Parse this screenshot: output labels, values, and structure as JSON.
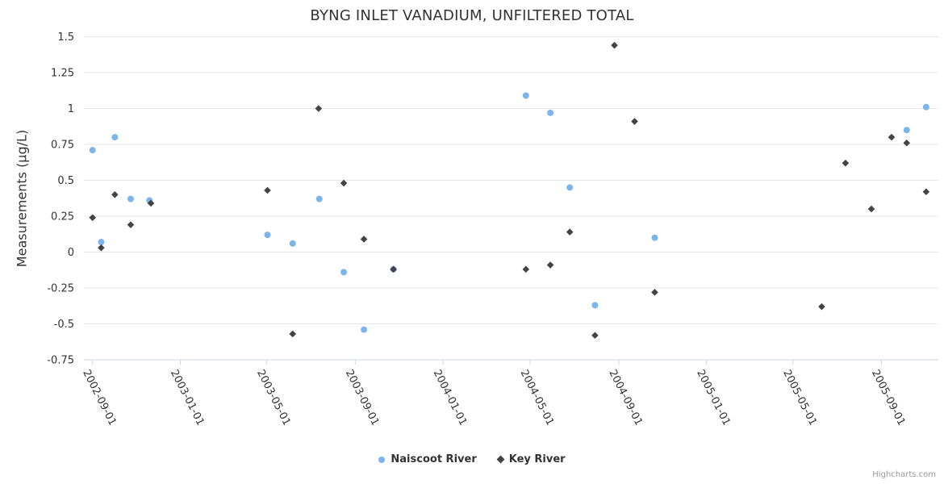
{
  "page": {
    "credits": "Highcharts.com"
  },
  "chart_data": {
    "type": "scatter",
    "title": "BYNG INLET VANADIUM, UNFILTERED TOTAL",
    "xlabel": "",
    "ylabel": "Measurements (µg/L)",
    "ylim": [
      -0.75,
      1.5
    ],
    "y_ticks": [
      -0.75,
      -0.5,
      -0.25,
      0,
      0.25,
      0.5,
      0.75,
      1,
      1.25,
      1.5
    ],
    "y_tick_labels": [
      "-0.75",
      "-0.5",
      "-0.25",
      "0",
      "0.25",
      "0.5",
      "0.75",
      "1",
      "1.25",
      "1.5"
    ],
    "x_ticks": [
      "2002-09-01",
      "2003-01-01",
      "2003-05-01",
      "2003-09-01",
      "2004-01-01",
      "2004-05-01",
      "2004-09-01",
      "2005-01-01",
      "2005-05-01",
      "2005-09-01"
    ],
    "x_range": [
      "2002-08-20",
      "2005-11-19"
    ],
    "grid": true,
    "legend_position": "bottom",
    "axis_line_color": "#ccd6eb",
    "grid_color": "#e6e6e6",
    "text_color": "#333333",
    "series": [
      {
        "name": "Naiscoot River",
        "marker": "circle",
        "color": "#7cb5ec",
        "data": [
          [
            "2002-09-01",
            0.71
          ],
          [
            "2002-09-13",
            0.07
          ],
          [
            "2002-10-02",
            0.8
          ],
          [
            "2002-10-24",
            0.37
          ],
          [
            "2002-11-19",
            0.36
          ],
          [
            "2003-05-02",
            0.12
          ],
          [
            "2003-06-06",
            0.06
          ],
          [
            "2003-07-13",
            0.37
          ],
          [
            "2003-08-16",
            -0.14
          ],
          [
            "2003-09-13",
            -0.54
          ],
          [
            "2003-10-24",
            -0.12
          ],
          [
            "2004-04-25",
            1.09
          ],
          [
            "2004-05-29",
            0.97
          ],
          [
            "2004-06-25",
            0.45
          ],
          [
            "2004-07-30",
            -0.37
          ],
          [
            "2004-10-21",
            0.1
          ],
          [
            "2005-10-06",
            0.85
          ],
          [
            "2005-11-02",
            1.01
          ]
        ]
      },
      {
        "name": "Key River",
        "marker": "diamond",
        "color": "#434348",
        "data": [
          [
            "2002-09-01",
            0.24
          ],
          [
            "2002-09-13",
            0.03
          ],
          [
            "2002-10-02",
            0.4
          ],
          [
            "2002-10-24",
            0.19
          ],
          [
            "2002-11-21",
            0.34
          ],
          [
            "2003-05-02",
            0.43
          ],
          [
            "2003-06-06",
            -0.57
          ],
          [
            "2003-07-12",
            1.0
          ],
          [
            "2003-08-16",
            0.48
          ],
          [
            "2003-09-13",
            0.09
          ],
          [
            "2003-10-24",
            -0.12
          ],
          [
            "2004-04-25",
            -0.12
          ],
          [
            "2004-05-29",
            -0.09
          ],
          [
            "2004-06-25",
            0.14
          ],
          [
            "2004-07-30",
            -0.58
          ],
          [
            "2004-08-26",
            1.44
          ],
          [
            "2004-09-23",
            0.91
          ],
          [
            "2004-10-21",
            -0.28
          ],
          [
            "2005-06-10",
            -0.38
          ],
          [
            "2005-07-13",
            0.62
          ],
          [
            "2005-08-18",
            0.3
          ],
          [
            "2005-09-15",
            0.8
          ],
          [
            "2005-10-06",
            0.76
          ],
          [
            "2005-11-02",
            0.42
          ]
        ]
      }
    ]
  }
}
